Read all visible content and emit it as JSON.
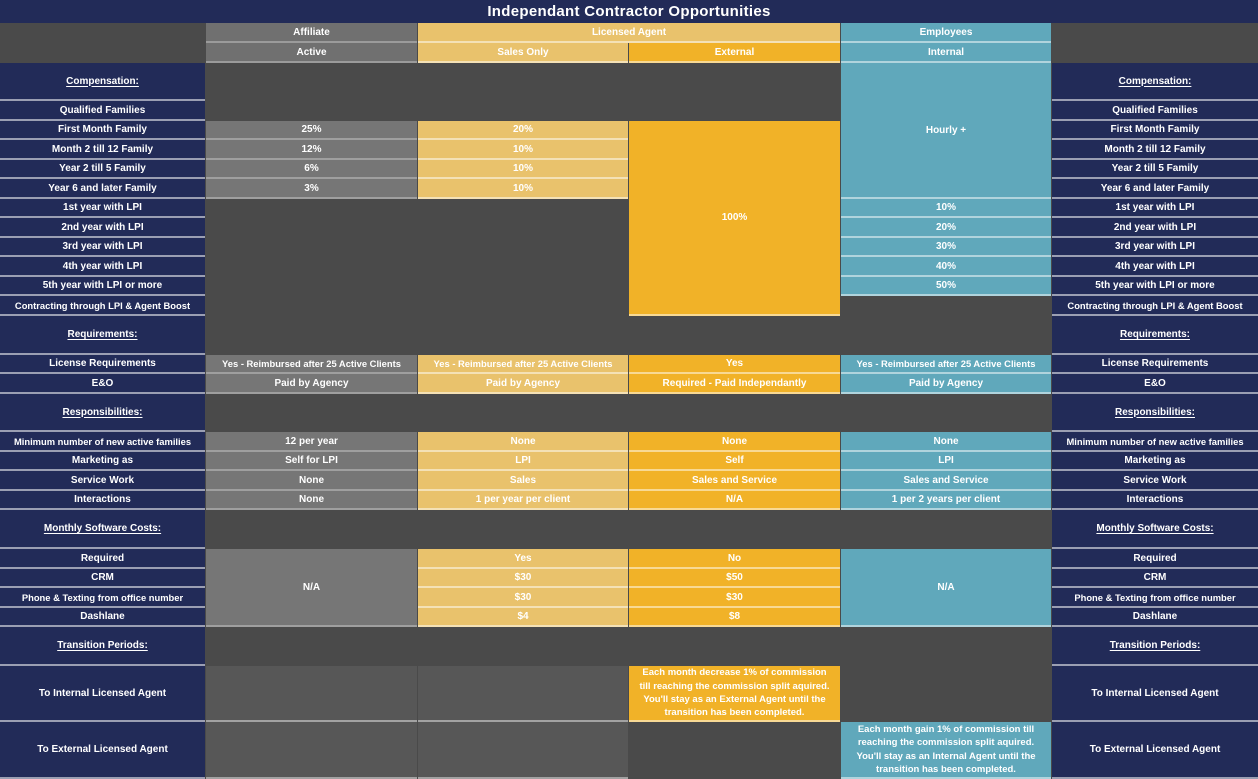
{
  "title": "Independant Contractor Opportunities",
  "colors": {
    "navy": "#222b58",
    "gray_header": "#707070",
    "gray_cell": "#767676",
    "backdrop_gray": "#4a4a4a",
    "empty_gray": "#575757",
    "gold_light": "#e9c26c",
    "gold_bright": "#f1b228",
    "teal": "#60a8bb",
    "text": "#ffffff"
  },
  "header": {
    "affiliate": "Affiliate",
    "affiliate_sub": "Active",
    "licensed_agent": "Licensed Agent",
    "sales_only": "Sales Only",
    "external": "External",
    "employees": "Employees",
    "internal": "Internal"
  },
  "sections": {
    "compensation": "Compensation:",
    "requirements": "Requirements:",
    "responsibilities": "Responsibilities:",
    "software": "Monthly Software Costs:",
    "transition": "Transition Periods:"
  },
  "merged": {
    "internal_hourly": "Hourly +",
    "external_commission": "100%",
    "affiliate_software_na": "N/A",
    "internal_software_na": "N/A"
  },
  "rows": {
    "qualified_families": {
      "label": "Qualified Families"
    },
    "first_month_family": {
      "label": "First Month Family",
      "affiliate": "25%",
      "sales_only": "20%"
    },
    "month_2_till_12_family": {
      "label": "Month 2 till 12 Family",
      "affiliate": "12%",
      "sales_only": "10%"
    },
    "year_2_till_5_family": {
      "label": "Year 2 till 5 Family",
      "affiliate": "6%",
      "sales_only": "10%"
    },
    "year_6_and_later_family": {
      "label": "Year 6 and later Family",
      "affiliate": "3%",
      "sales_only": "10%"
    },
    "year_1_lpi": {
      "label": "1st year with LPI",
      "internal": "10%"
    },
    "year_2_lpi": {
      "label": "2nd year with LPI",
      "internal": "20%"
    },
    "year_3_lpi": {
      "label": "3rd year with LPI",
      "internal": "30%"
    },
    "year_4_lpi": {
      "label": "4th year with LPI",
      "internal": "40%"
    },
    "year_5_lpi": {
      "label": "5th year with LPI or more",
      "internal": "50%"
    },
    "contracting": {
      "label": "Contracting through LPI & Agent Boost"
    },
    "license_requirements": {
      "label": "License Requirements",
      "affiliate": "Yes - Reimbursed after 25 Active Clients",
      "sales_only": "Yes - Reimbursed after 25 Active Clients",
      "external": "Yes",
      "internal": "Yes - Reimbursed after 25 Active Clients"
    },
    "eo": {
      "label": "E&O",
      "affiliate": "Paid by Agency",
      "sales_only": "Paid by Agency",
      "external": "Required - Paid Independantly",
      "internal": "Paid by Agency"
    },
    "min_new_families": {
      "label": "Minimum number of new active families",
      "affiliate": "12 per year",
      "sales_only": "None",
      "external": "None",
      "internal": "None"
    },
    "marketing_as": {
      "label": "Marketing as",
      "affiliate": "Self for LPI",
      "sales_only": "LPI",
      "external": "Self",
      "internal": "LPI"
    },
    "service_work": {
      "label": "Service Work",
      "affiliate": "None",
      "sales_only": "Sales",
      "external": "Sales and Service",
      "internal": "Sales and Service"
    },
    "interactions": {
      "label": "Interactions",
      "affiliate": "None",
      "sales_only": "1 per year per client",
      "external": "N/A",
      "internal": "1 per 2 years per client"
    },
    "required": {
      "label": "Required",
      "sales_only": "Yes",
      "external": "No"
    },
    "crm": {
      "label": "CRM",
      "sales_only": "$30",
      "external": "$50"
    },
    "phone_texting": {
      "label": "Phone & Texting from office number",
      "sales_only": "$30",
      "external": "$30"
    },
    "dashlane": {
      "label": "Dashlane",
      "sales_only": "$4",
      "external": "$8"
    },
    "to_internal": {
      "label": "To Internal Licensed Agent",
      "external": "Each month decrease 1% of commission till reaching the commission split aquired. You'll stay as an External Agent until the transition has been completed."
    },
    "to_external": {
      "label": "To External Licensed Agent",
      "internal": "Each month gain 1% of commission till reaching the commission split aquired. You'll stay as an Internal Agent until the transition has been completed."
    }
  }
}
